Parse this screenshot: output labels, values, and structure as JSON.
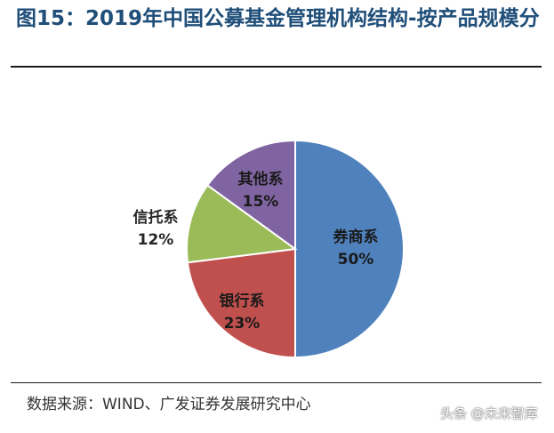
{
  "title": "图15：2019年中国公募基金管理机构结构-按产品规模分",
  "source": "数据来源：WIND、广发证券发展研究中心",
  "watermark": "头条 @未来智库",
  "chart_data": {
    "type": "pie",
    "title": "",
    "start_angle_deg": 0,
    "direction": "clockwise",
    "slices": [
      {
        "name": "券商系",
        "label": "券商系",
        "value_label": "50%",
        "value": 50,
        "color": "#4f81bd"
      },
      {
        "name": "银行系",
        "label": "银行系",
        "value_label": "23%",
        "value": 23,
        "color": "#c0504d"
      },
      {
        "name": "信托系",
        "label": "信托系",
        "value_label": "12%",
        "value": 12,
        "color": "#9bbb59"
      },
      {
        "name": "其他系",
        "label": "其他系",
        "value_label": "15%",
        "value": 15,
        "color": "#8064a2"
      }
    ]
  }
}
